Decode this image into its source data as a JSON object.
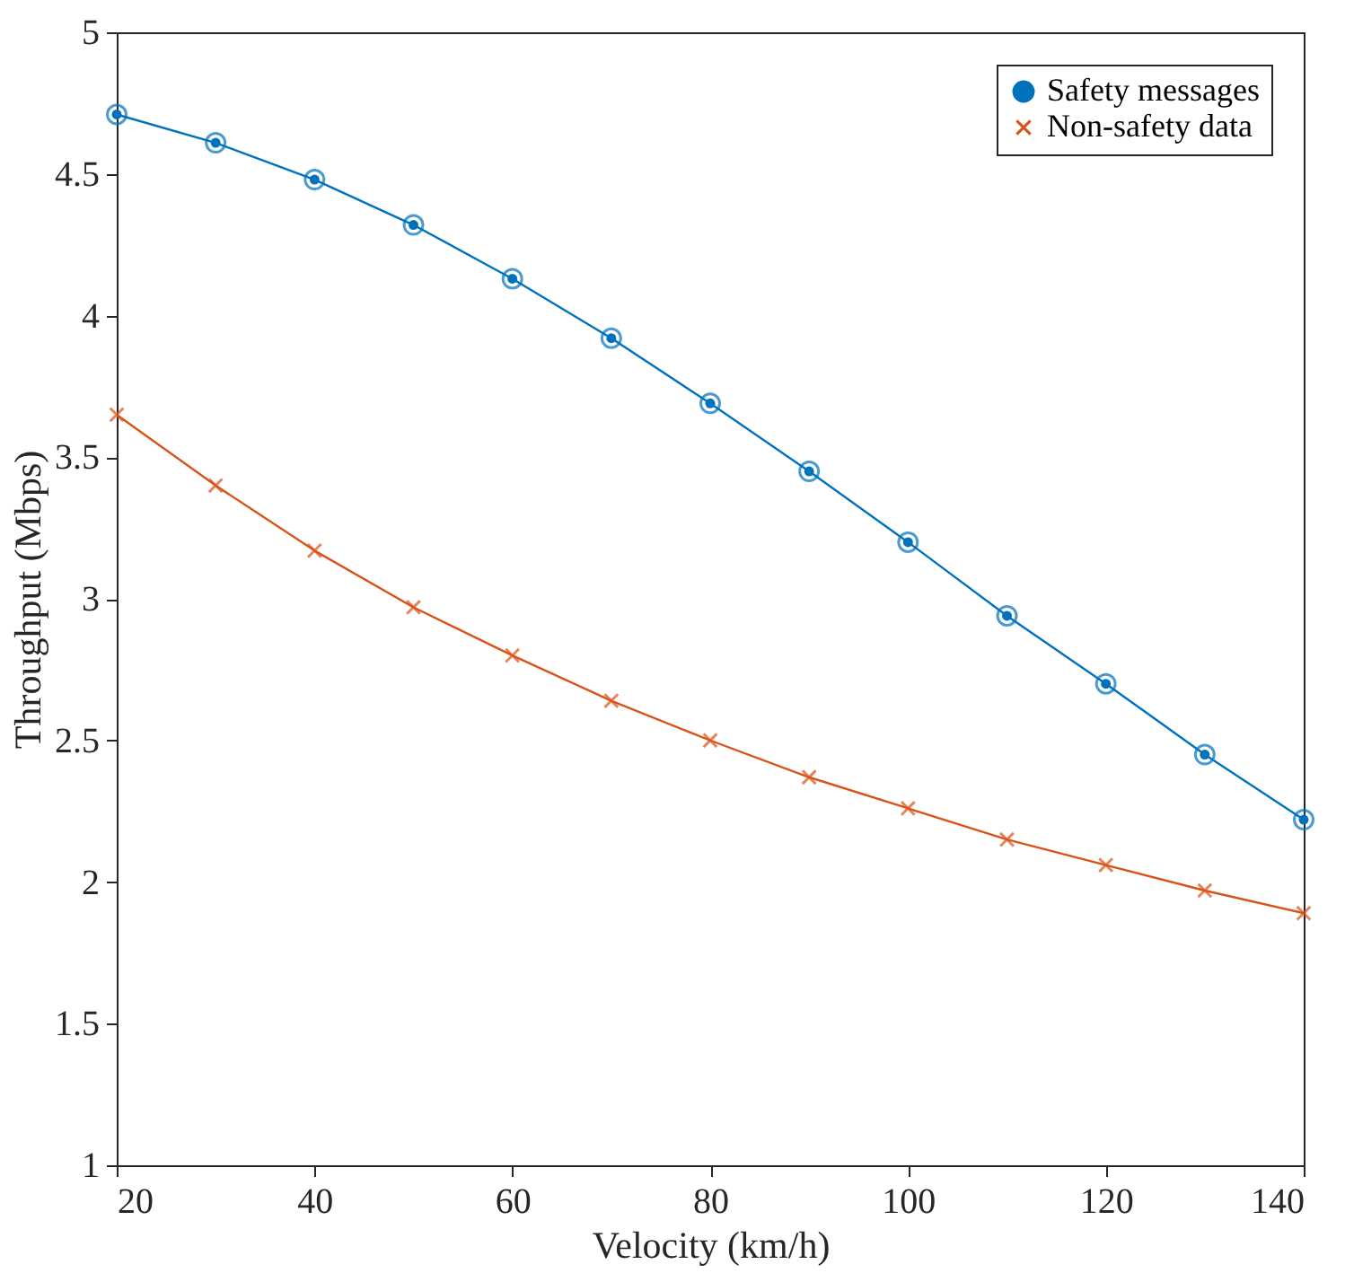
{
  "chart_data": {
    "type": "line",
    "xlabel": "Velocity (km/h)",
    "ylabel": "Throughput (Mbps)",
    "x": [
      20,
      30,
      40,
      50,
      60,
      70,
      80,
      90,
      100,
      110,
      120,
      130,
      140
    ],
    "series": [
      {
        "name": "Safety messages",
        "color": "#0072bd",
        "marker": "circle",
        "values": [
          4.71,
          4.61,
          4.48,
          4.32,
          4.13,
          3.92,
          3.69,
          3.45,
          3.2,
          2.94,
          2.7,
          2.45,
          2.22
        ]
      },
      {
        "name": "Non-safety data",
        "color": "#d95319",
        "marker": "cross",
        "values": [
          3.65,
          3.4,
          3.17,
          2.97,
          2.8,
          2.64,
          2.5,
          2.37,
          2.26,
          2.15,
          2.06,
          1.97,
          1.89
        ]
      }
    ],
    "xlim": [
      20,
      140
    ],
    "xticks": [
      20,
      40,
      60,
      80,
      100,
      120,
      140
    ],
    "ylim": [
      1,
      5
    ],
    "yticks": [
      1,
      1.5,
      2,
      2.5,
      3,
      3.5,
      4,
      4.5,
      5
    ],
    "grid": false,
    "legend": "top right",
    "line_style": "solid"
  }
}
